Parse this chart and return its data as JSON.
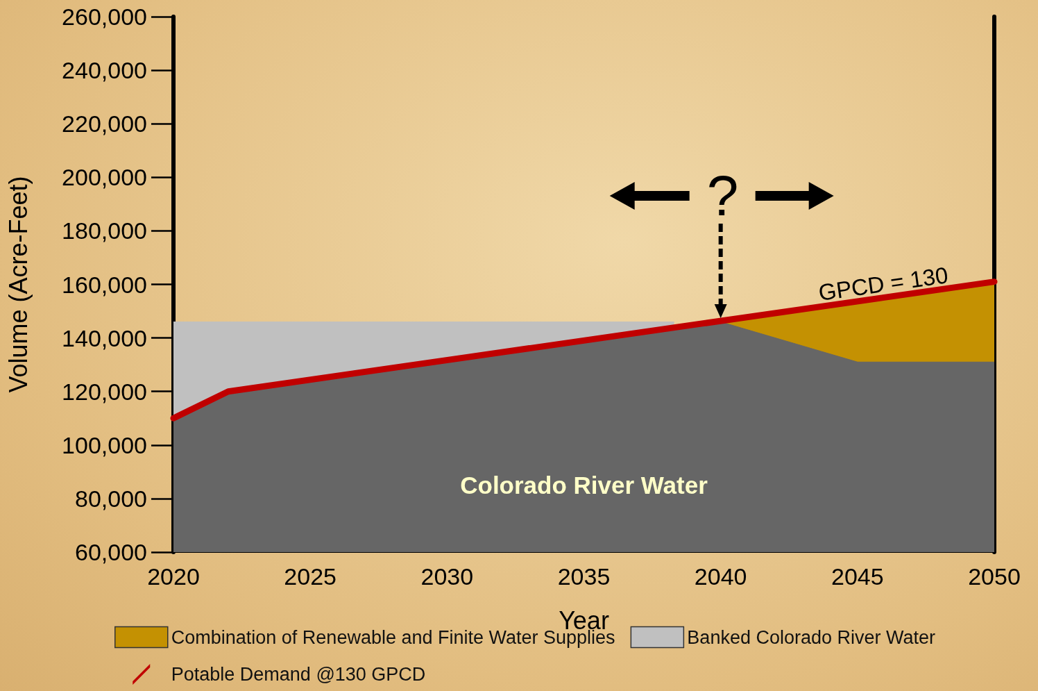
{
  "chart_data": {
    "type": "area",
    "xlabel": "Year",
    "ylabel": "Volume (Acre-Feet)",
    "xlim": [
      2020,
      2050
    ],
    "xticks": [
      2020,
      2025,
      2030,
      2035,
      2040,
      2045,
      2050
    ],
    "ylim": [
      60000,
      260000
    ],
    "yticks": [
      {
        "value": 60000,
        "label": "60,000"
      },
      {
        "value": 80000,
        "label": "80,000"
      },
      {
        "value": 100000,
        "label": "100,000"
      },
      {
        "value": 120000,
        "label": "120,000"
      },
      {
        "value": 140000,
        "label": "140,000"
      },
      {
        "value": 160000,
        "label": "160,000"
      },
      {
        "value": 180000,
        "label": "180,000"
      },
      {
        "value": 200000,
        "label": "200,000"
      },
      {
        "value": 220000,
        "label": "220,000"
      },
      {
        "value": 240000,
        "label": "240,000"
      },
      {
        "value": 260000,
        "label": "260,000"
      }
    ],
    "series": [
      {
        "name": "Banked Colorado River Water",
        "color": "#c0c0c0",
        "x": [
          2020,
          2038.3
        ],
        "values": [
          146000,
          146000
        ]
      },
      {
        "name": "Combination of Renewable and Finite Water Supplies",
        "color": "#c49102",
        "x": [
          2040,
          2050
        ],
        "values": [
          146400,
          161000
        ]
      },
      {
        "name": "Colorado River Water",
        "color": "#666666",
        "x": [
          2020,
          2022,
          2040,
          2045,
          2050
        ],
        "values": [
          110000,
          120000,
          146000,
          131000,
          131000
        ]
      },
      {
        "name": "Potable Demand @130 GPCD",
        "type": "line",
        "color": "#c00000",
        "x": [
          2020,
          2022,
          2050
        ],
        "values": [
          110000,
          120000,
          161000
        ]
      }
    ],
    "annotations": [
      {
        "text": "GPCD = 130",
        "x": 2046,
        "y": 156000
      },
      {
        "text": "?",
        "x": 2040,
        "y": 146400
      }
    ],
    "legend": "bottom",
    "marker": "none",
    "grid": false
  }
}
